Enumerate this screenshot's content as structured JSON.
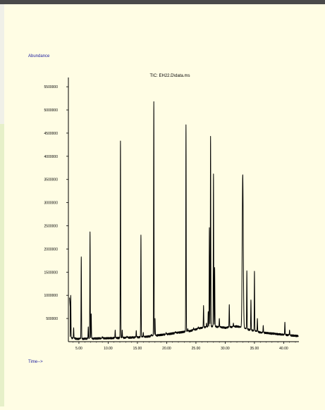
{
  "chart_data": {
    "type": "line",
    "title": "TIC: EH22.D\\data.ms",
    "ylabel": "Abundance",
    "xlabel": "Time-->",
    "xlim": [
      3.2,
      42.6
    ],
    "ylim": [
      0,
      5700000
    ],
    "x_ticks": [
      5,
      10,
      15,
      20,
      25,
      30,
      35,
      40
    ],
    "x_tick_labels": [
      "5.00",
      "10.00",
      "15.00",
      "20.00",
      "25.00",
      "30.00",
      "35.00",
      "40.00"
    ],
    "y_ticks": [
      500000,
      1000000,
      1500000,
      2000000,
      2500000,
      3000000,
      3500000,
      4000000,
      4500000,
      5000000,
      5500000
    ],
    "y_tick_labels": [
      "500000",
      "1000000",
      "1500000",
      "2000000",
      "2500000",
      "3000000",
      "3500000",
      "4000000",
      "4500000",
      "5000000",
      "5500000"
    ],
    "grid": false,
    "series": [
      {
        "baseline": [
          [
            3.4,
            80000
          ],
          [
            5,
            60000
          ],
          [
            8,
            70000
          ],
          [
            12,
            80000
          ],
          [
            16,
            100000
          ],
          [
            20,
            160000
          ],
          [
            24,
            230000
          ],
          [
            26,
            300000
          ],
          [
            28,
            330000
          ],
          [
            30,
            300000
          ],
          [
            32,
            330000
          ],
          [
            34,
            260000
          ],
          [
            36,
            200000
          ],
          [
            40,
            150000
          ],
          [
            42.5,
            120000
          ]
        ],
        "peaks": [
          [
            3.6,
            1000000
          ],
          [
            4.1,
            300000
          ],
          [
            5.4,
            1830000
          ],
          [
            6.6,
            320000
          ],
          [
            6.9,
            2370000
          ],
          [
            7.1,
            600000
          ],
          [
            9.0,
            110000
          ],
          [
            11.2,
            250000
          ],
          [
            12.1,
            4330000
          ],
          [
            12.4,
            250000
          ],
          [
            13.2,
            120000
          ],
          [
            14.8,
            240000
          ],
          [
            15.6,
            2300000
          ],
          [
            16.0,
            200000
          ],
          [
            17.4,
            160000
          ],
          [
            17.8,
            5180000
          ],
          [
            18.0,
            500000
          ],
          [
            19.9,
            200000
          ],
          [
            21.5,
            220000
          ],
          [
            23.3,
            4680000
          ],
          [
            23.6,
            280000
          ],
          [
            24.6,
            300000
          ],
          [
            25.4,
            320000
          ],
          [
            26.3,
            780000
          ],
          [
            26.8,
            400000
          ],
          [
            27.1,
            650000
          ],
          [
            27.3,
            2460000
          ],
          [
            27.5,
            4430000
          ],
          [
            28.0,
            3620000
          ],
          [
            28.2,
            1600000
          ],
          [
            29.0,
            500000
          ],
          [
            30.7,
            800000
          ],
          [
            31.4,
            400000
          ],
          [
            33.0,
            3600000
          ],
          [
            33.7,
            1530000
          ],
          [
            34.4,
            900000
          ],
          [
            35.0,
            1520000
          ],
          [
            35.5,
            500000
          ],
          [
            36.5,
            350000
          ],
          [
            40.2,
            420000
          ],
          [
            41.0,
            250000
          ]
        ]
      }
    ]
  }
}
